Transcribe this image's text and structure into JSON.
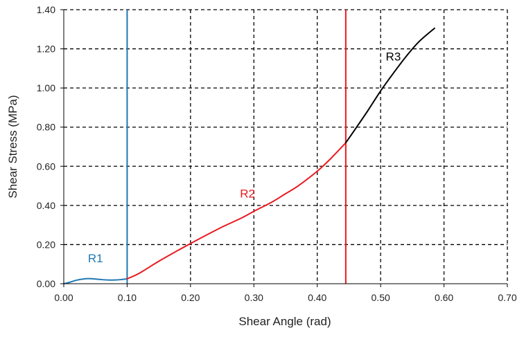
{
  "chart_data": {
    "type": "line",
    "title": "",
    "xlabel": "Shear Angle (rad)",
    "ylabel": "Shear Stress (MPa)",
    "xlim": [
      0,
      0.7
    ],
    "ylim": [
      0,
      1.4
    ],
    "xticks": [
      0,
      0.1,
      0.2,
      0.3,
      0.4,
      0.5,
      0.6,
      0.7
    ],
    "yticks": [
      0,
      0.2,
      0.4,
      0.6,
      0.8,
      1.0,
      1.2,
      1.4
    ],
    "xtick_labels": [
      "0.00",
      "0.10",
      "0.20",
      "0.30",
      "0.40",
      "0.50",
      "0.60",
      "0.70"
    ],
    "ytick_labels": [
      "0.00",
      "0.20",
      "0.40",
      "0.60",
      "0.80",
      "1.00",
      "1.20",
      "1.40"
    ],
    "grid": true,
    "grid_style": "dashed",
    "series": [
      {
        "name": "R1",
        "color": "#1f77b4",
        "x": [
          0.0,
          0.01,
          0.02,
          0.03,
          0.04,
          0.05,
          0.06,
          0.07,
          0.08,
          0.09,
          0.1
        ],
        "y": [
          0.0,
          0.008,
          0.018,
          0.024,
          0.026,
          0.024,
          0.021,
          0.019,
          0.019,
          0.021,
          0.025
        ]
      },
      {
        "name": "R2",
        "color": "#e8191e",
        "x": [
          0.1,
          0.12,
          0.15,
          0.18,
          0.2,
          0.22,
          0.25,
          0.28,
          0.3,
          0.33,
          0.35,
          0.37,
          0.4,
          0.42,
          0.445
        ],
        "y": [
          0.025,
          0.055,
          0.115,
          0.17,
          0.205,
          0.24,
          0.29,
          0.335,
          0.37,
          0.42,
          0.46,
          0.5,
          0.575,
          0.635,
          0.72
        ]
      },
      {
        "name": "R3",
        "color": "#000000",
        "x": [
          0.445,
          0.46,
          0.48,
          0.5,
          0.52,
          0.54,
          0.56,
          0.585
        ],
        "y": [
          0.72,
          0.79,
          0.885,
          0.985,
          1.075,
          1.16,
          1.235,
          1.305
        ]
      }
    ],
    "vertical_lines": [
      {
        "x": 0.1,
        "color": "#1f77b4"
      },
      {
        "x": 0.445,
        "color": "#e8191e"
      }
    ],
    "annotations": [
      {
        "text": "R1",
        "x": 0.05,
        "y": 0.11,
        "color": "#1f77b4"
      },
      {
        "text": "R2",
        "x": 0.29,
        "y": 0.44,
        "color": "#e8191e"
      },
      {
        "text": "R3",
        "x": 0.52,
        "y": 1.14,
        "color": "#000000"
      }
    ]
  }
}
